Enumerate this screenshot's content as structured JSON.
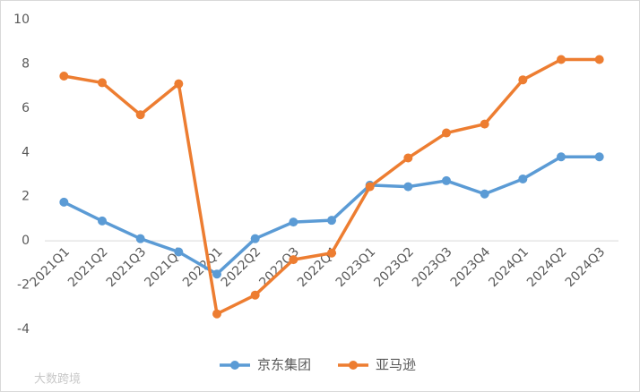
{
  "chart_data": {
    "type": "line",
    "categories": [
      "2021Q1",
      "2021Q2",
      "2021Q3",
      "2021Q4",
      "2022Q1",
      "2022Q2",
      "2022Q3",
      "2022Q4",
      "2023Q1",
      "2023Q2",
      "2023Q3",
      "2023Q4",
      "2024Q1",
      "2024Q2",
      "2024Q3"
    ],
    "series": [
      {
        "name": "京东集团",
        "color": "#5b9bd5",
        "values": [
          1.75,
          0.9,
          0.1,
          -0.5,
          -1.5,
          0.1,
          0.85,
          0.93,
          2.52,
          2.45,
          2.72,
          2.12,
          2.8,
          3.8,
          3.8
        ]
      },
      {
        "name": "亚马逊",
        "color": "#ed7d31",
        "values": [
          7.45,
          7.15,
          5.7,
          7.1,
          -3.3,
          -2.45,
          -0.85,
          -0.55,
          2.45,
          3.75,
          4.88,
          5.28,
          7.28,
          8.2,
          8.2
        ]
      }
    ],
    "ylim": [
      -4,
      10
    ],
    "yticks": [
      -4,
      -2,
      0,
      2,
      4,
      6,
      8,
      10
    ],
    "grid": false,
    "legend": "bottom",
    "watermark": "大数跨境"
  }
}
